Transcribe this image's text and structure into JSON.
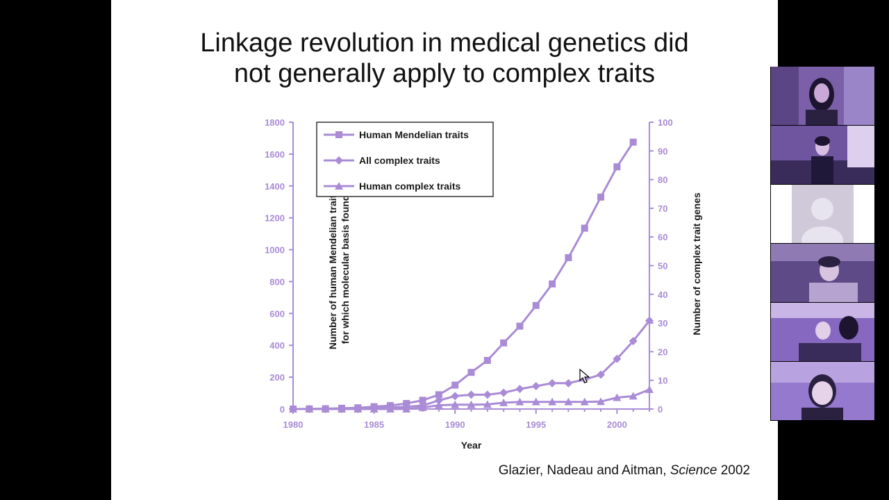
{
  "slide": {
    "title_line1": "Linkage revolution in medical genetics did",
    "title_line2": "not generally apply to complex traits",
    "citation_authors": "Glazier, Nadeau and Aitman, ",
    "citation_journal": "Science",
    "citation_year": " 2002"
  },
  "chart_data": {
    "type": "line",
    "xlabel": "Year",
    "ylabel_left_line1": "Number of human Mendelian traits",
    "ylabel_left_line2": "for which molecular basis found",
    "ylabel_right": "Number of complex trait genes",
    "xlim": [
      1980,
      2002
    ],
    "ylim_left": [
      0,
      1800
    ],
    "ylim_right": [
      0,
      100
    ],
    "x_ticks": [
      1980,
      1985,
      1990,
      1995,
      2000
    ],
    "y_ticks_left": [
      0,
      200,
      400,
      600,
      800,
      1000,
      1200,
      1400,
      1600,
      1800
    ],
    "y_ticks_right": [
      0,
      10,
      20,
      30,
      40,
      50,
      60,
      70,
      80,
      90,
      100
    ],
    "legend_position": "top-left",
    "color": "#a98bd6",
    "series": [
      {
        "name": "Human Mendelian traits",
        "marker": "square",
        "axis": "left",
        "x": [
          1980,
          1981,
          1982,
          1983,
          1984,
          1985,
          1986,
          1987,
          1988,
          1989,
          1990,
          1991,
          1992,
          1993,
          1994,
          1995,
          1996,
          1997,
          1998,
          1999,
          2000,
          2001
        ],
        "y": [
          0,
          1,
          2,
          5,
          8,
          15,
          22,
          35,
          55,
          90,
          150,
          230,
          305,
          415,
          520,
          650,
          785,
          950,
          1135,
          1330,
          1520,
          1675
        ]
      },
      {
        "name": "All complex traits",
        "marker": "diamond",
        "axis": "right",
        "x": [
          1980,
          1981,
          1982,
          1983,
          1984,
          1985,
          1986,
          1987,
          1988,
          1989,
          1990,
          1991,
          1992,
          1993,
          1994,
          1995,
          1996,
          1997,
          1998,
          1999,
          2000,
          2001,
          2002
        ],
        "y": [
          0,
          0,
          0,
          0,
          0,
          0.3,
          0.5,
          0.8,
          1.2,
          3,
          4.5,
          5,
          5,
          5.7,
          7,
          8,
          9,
          9,
          10.3,
          12,
          17.5,
          23.7,
          30.8
        ]
      },
      {
        "name": "Human complex traits",
        "marker": "triangle",
        "axis": "right",
        "x": [
          1980,
          1981,
          1982,
          1983,
          1984,
          1985,
          1986,
          1987,
          1988,
          1989,
          1990,
          1991,
          1992,
          1993,
          1994,
          1995,
          1996,
          1997,
          1998,
          1999,
          2000,
          2001,
          2002
        ],
        "y": [
          0,
          0,
          0,
          0,
          0,
          0,
          0,
          0,
          0.5,
          1.3,
          1.5,
          1.5,
          1.6,
          2.2,
          2.5,
          2.5,
          2.5,
          2.5,
          2.5,
          2.6,
          4,
          4.5,
          6.8
        ]
      }
    ]
  },
  "participants": [
    {
      "name": "participant-tile-1",
      "tone": "#7b5fa8"
    },
    {
      "name": "participant-tile-2",
      "tone": "#6f55a0"
    },
    {
      "name": "participant-tile-3",
      "tone": "#8a6cc0"
    },
    {
      "name": "participant-tile-4",
      "tone": "#5e4a86"
    },
    {
      "name": "participant-tile-5",
      "tone": "#8768c0"
    },
    {
      "name": "participant-tile-6",
      "tone": "#9479cf"
    }
  ]
}
